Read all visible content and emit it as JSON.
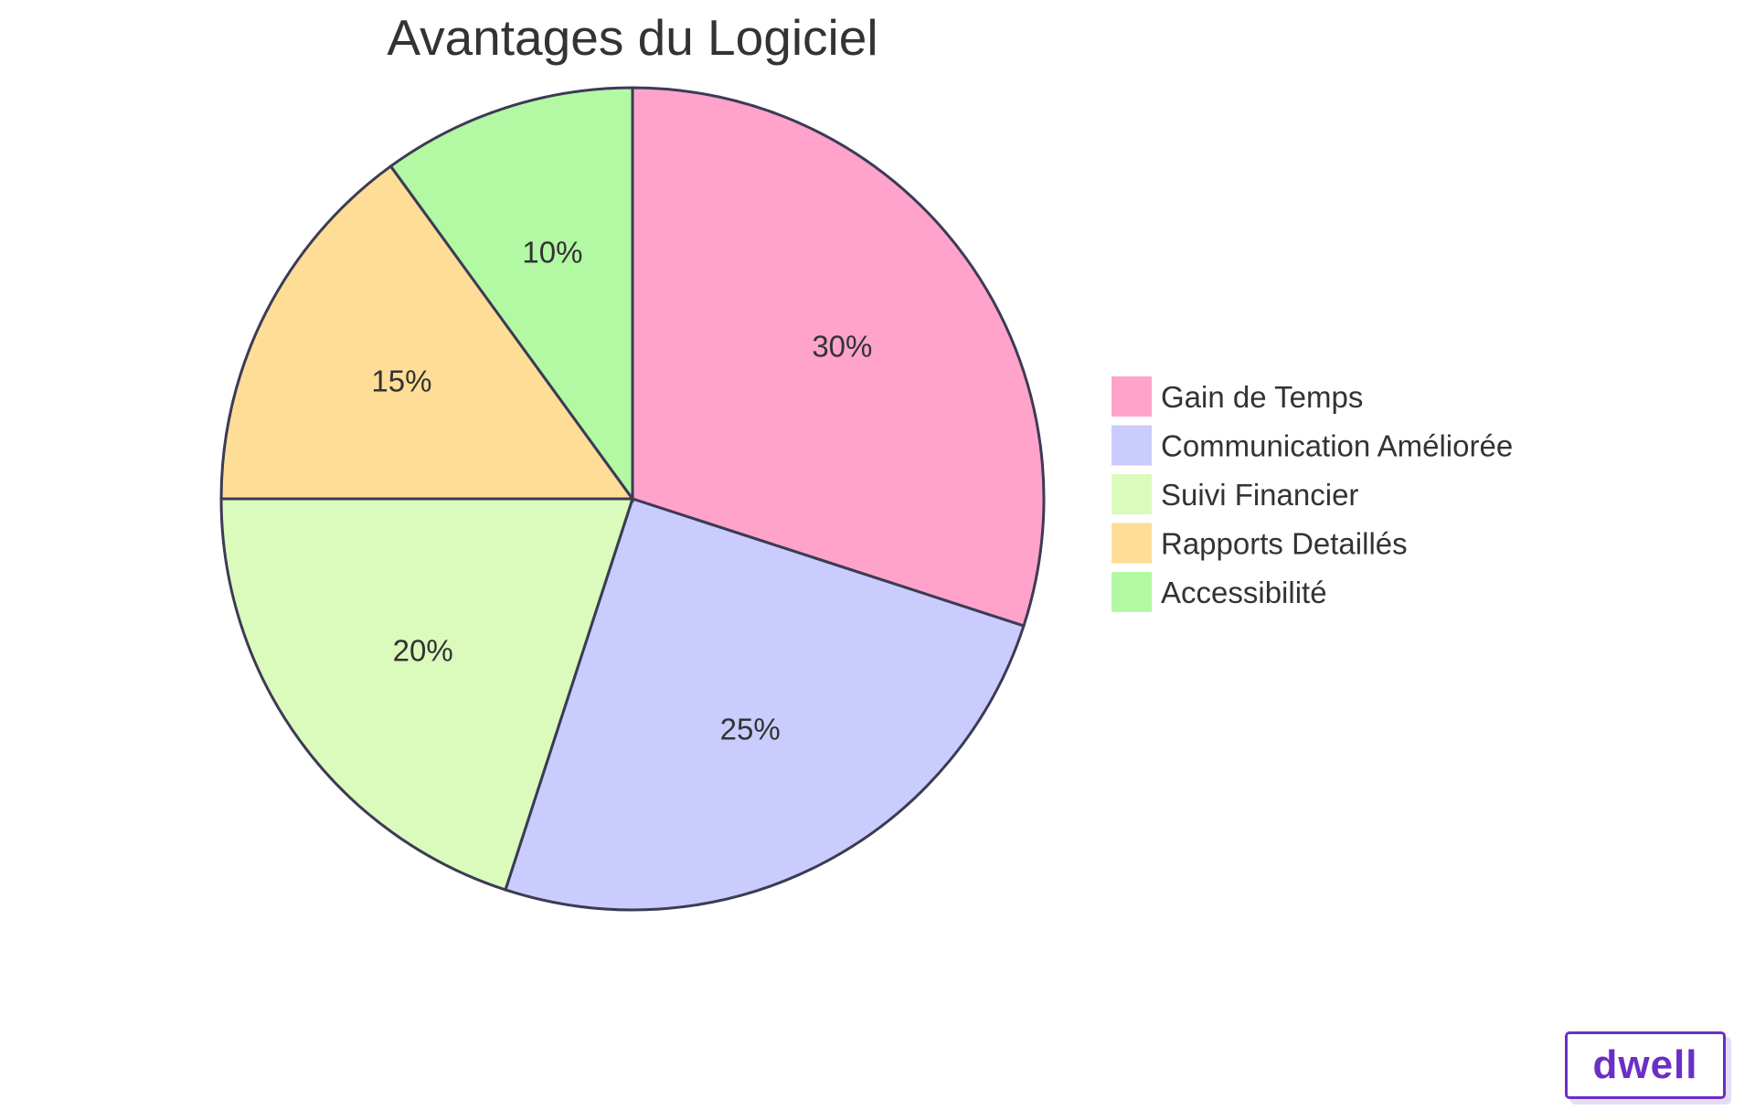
{
  "chart_data": {
    "type": "pie",
    "title": "Avantages du Logiciel",
    "categories": [
      "Gain de Temps",
      "Communication Améliorée",
      "Suivi Financier",
      "Rapports Detaillés",
      "Accessibilité"
    ],
    "values": [
      30,
      25,
      20,
      15,
      10
    ],
    "labels": [
      "30%",
      "25%",
      "20%",
      "15%",
      "10%"
    ],
    "colors": [
      "#ffa3cb",
      "#caccfd",
      "#dafbbb",
      "#fedd97",
      "#b3f8a2"
    ],
    "legend_position": "right",
    "start": "top",
    "direction": "clockwise"
  },
  "logo": {
    "text": "dwell"
  }
}
